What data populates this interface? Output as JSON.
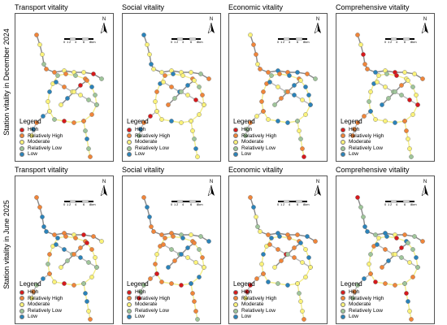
{
  "row_labels": [
    "Station vitality in December 2024",
    "Station vitality in June 2025"
  ],
  "column_titles": [
    "Transport vitality",
    "Social vitality",
    "Economic vitality",
    "Comprehensive vitality"
  ],
  "north_label": "N",
  "scale": {
    "ticks": [
      "0",
      "1",
      "2",
      "4",
      "6",
      "8km"
    ]
  },
  "legend": {
    "title": "Legend",
    "items": [
      {
        "label": "High",
        "color": "#d7191c"
      },
      {
        "label": "Relatively High",
        "color": "#f0853a"
      },
      {
        "label": "Moderate",
        "color": "#fbf37a"
      },
      {
        "label": "Relatively Low",
        "color": "#9fc59a"
      },
      {
        "label": "Low",
        "color": "#2b83ba"
      }
    ]
  },
  "lines": [
    "#888888",
    "#f4ee8a",
    "#bbbbbb"
  ]
}
